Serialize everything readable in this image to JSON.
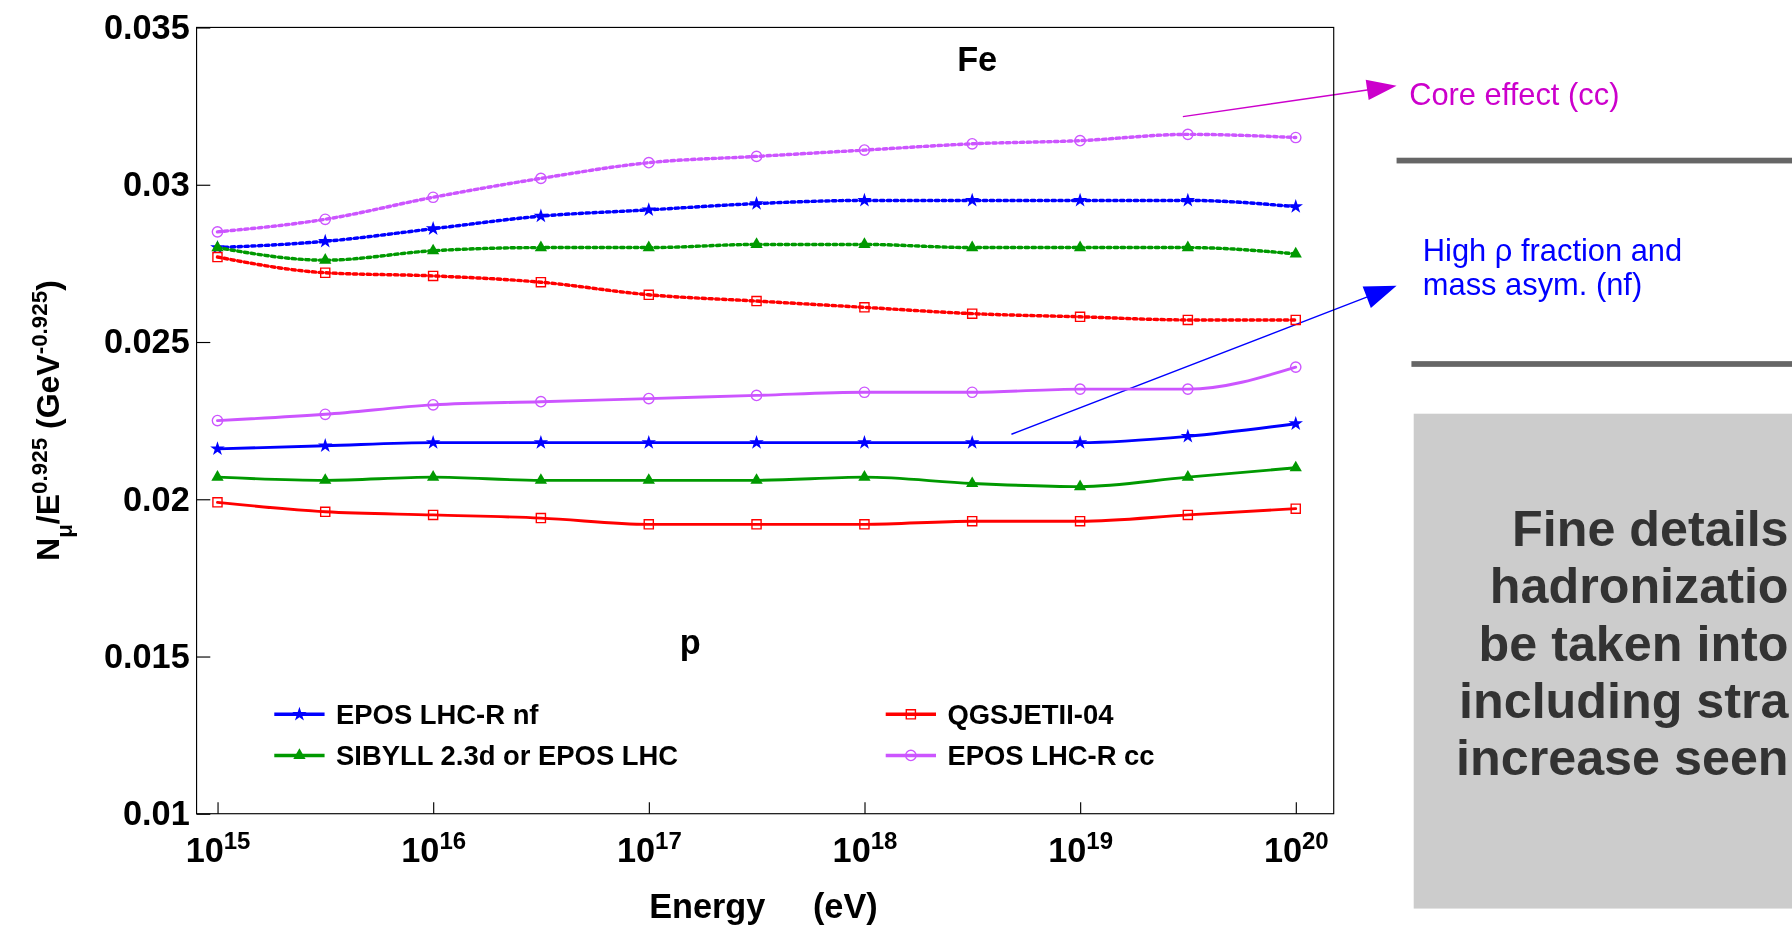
{
  "chart_data": {
    "type": "line",
    "xlabel": "Energy     (eV)",
    "ylabel": "N$_{μ}$/E$^{0.925}$ (GeV$^{-0.925}$)",
    "x": [
      1000000000000000.0,
      3160000000000000.0,
      1e+16,
      3.16e+16,
      1e+17,
      3.16e+17,
      1e+18,
      3.16e+18,
      1e+19,
      3.16e+19,
      1e+20
    ],
    "log": "x",
    "xlim": [
      800000000000000.0,
      1.5e+20
    ],
    "xticks": [
      {
        "value": 1000000000000000.0,
        "label": "10$^{15}$"
      },
      {
        "value": 1e+16,
        "label": "10$^{16}$"
      },
      {
        "value": 1e+17,
        "label": "10$^{17}$"
      },
      {
        "value": 1e+18,
        "label": "10$^{18}$"
      },
      {
        "value": 1e+19,
        "label": "10$^{19}$"
      },
      {
        "value": 1e+20,
        "label": "10$^{20}$"
      }
    ],
    "ylim": [
      0.01,
      0.035
    ],
    "yticks": [
      0.01,
      0.015,
      0.02,
      0.025,
      0.03,
      0.035
    ],
    "grid": false,
    "legend": "bottom",
    "series": [
      {
        "color": "#cc55ff",
        "marker": "circle",
        "line_style": "dotted",
        "values": [
          0.0285,
          0.0289,
          0.0296,
          0.0302,
          0.0307,
          0.0309,
          0.0311,
          0.0313,
          0.0314,
          0.0316,
          0.0315
        ]
      },
      {
        "color": "#0000ff",
        "marker": "star",
        "line_style": "dotted",
        "values": [
          0.028,
          0.0282,
          0.0286,
          0.029,
          0.0292,
          0.0294,
          0.0295,
          0.0295,
          0.0295,
          0.0295,
          0.0293
        ]
      },
      {
        "color": "#009900",
        "marker": "triangle",
        "line_style": "dotted",
        "values": [
          0.028,
          0.0276,
          0.0279,
          0.028,
          0.028,
          0.0281,
          0.0281,
          0.028,
          0.028,
          0.028,
          0.0278
        ]
      },
      {
        "color": "#ff0000",
        "marker": "square",
        "line_style": "dotted",
        "values": [
          0.0277,
          0.0272,
          0.0271,
          0.0269,
          0.0265,
          0.0263,
          0.0261,
          0.0259,
          0.0258,
          0.0257,
          0.0257
        ]
      },
      {
        "name": "EPOS LHC-R nf",
        "color": "#0000ff",
        "marker": "star",
        "line_style": "solid",
        "values": [
          0.0216,
          0.0217,
          0.0218,
          0.0218,
          0.0218,
          0.0218,
          0.0218,
          0.0218,
          0.0218,
          0.022,
          0.0224
        ]
      },
      {
        "name": "SIBYLL 2.3d or EPOS LHC",
        "color": "#009900",
        "marker": "triangle",
        "line_style": "solid",
        "values": [
          0.0207,
          0.0206,
          0.0207,
          0.0206,
          0.0206,
          0.0206,
          0.0207,
          0.0205,
          0.0204,
          0.0207,
          0.021
        ]
      },
      {
        "name": "QGSJETII-04",
        "color": "#ff0000",
        "marker": "square",
        "line_style": "solid",
        "values": [
          0.0199,
          0.0196,
          0.0195,
          0.0194,
          0.0192,
          0.0192,
          0.0192,
          0.0193,
          0.0193,
          0.0195,
          0.0197
        ]
      },
      {
        "name": "EPOS LHC-R cc",
        "color": "#cc55ff",
        "marker": "circle",
        "line_style": "solid",
        "values": [
          0.0225,
          0.0227,
          0.023,
          0.0231,
          0.0232,
          0.0233,
          0.0234,
          0.0234,
          0.0235,
          0.0235,
          0.0242
        ]
      }
    ],
    "annotations": [
      "Fe",
      "p",
      "Core effect (cc)",
      "High ρ fraction and\nmass asym. (nf)",
      "Fine details\nhadronizatio\nbe taken into\nincluding stra\nincrease seen"
    ]
  }
}
